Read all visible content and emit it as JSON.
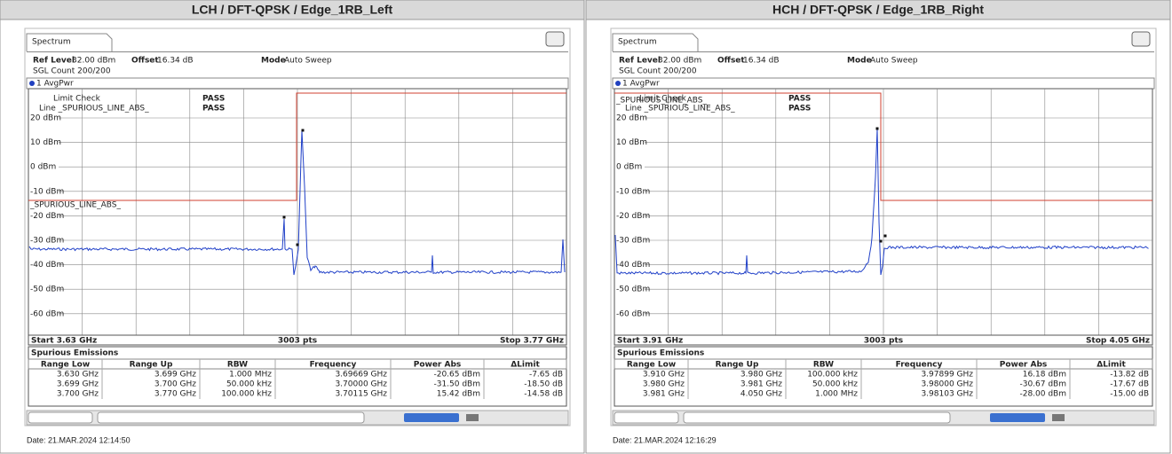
{
  "panels": [
    {
      "title": "LCH / DFT-QPSK / Edge_1RB_Left",
      "tab": "Spectrum",
      "ref_level_label": "Ref Level",
      "ref_level": "32.00 dBm",
      "offset_label": "Offset",
      "offset": "16.34 dB",
      "mode_label": "Mode",
      "mode": "Auto Sweep",
      "sgl_count": "SGL Count 200/200",
      "trace": "1 AvgPwr",
      "limit_check": [
        "Limit Check",
        "PASS"
      ],
      "limit_line": [
        "Line _SPURIOUS_LINE_ABS_",
        "PASS"
      ],
      "limit_line_label": "_SPURIOUS_LINE_ABS_",
      "y_labels": [
        "20 dBm",
        "10 dBm",
        "0 dBm",
        "-10 dBm",
        "-20 dBm",
        "-30 dBm",
        "-40 dBm",
        "-50 dBm",
        "-60 dBm"
      ],
      "start": "Start 3.63 GHz",
      "points": "3003 pts",
      "stop": "Stop 3.77 GHz",
      "table": {
        "title": "Spurious Emissions",
        "header": [
          "Range Low",
          "Range Up",
          "RBW",
          "Frequency",
          "Power Abs",
          "ΔLimit"
        ],
        "rows": [
          [
            "3.630 GHz",
            "3.699 GHz",
            "1.000 MHz",
            "3.69669 GHz",
            "-20.65 dBm",
            "-7.65 dB"
          ],
          [
            "3.699 GHz",
            "3.700 GHz",
            "50.000 kHz",
            "3.70000 GHz",
            "-31.50 dBm",
            "-18.50 dB"
          ],
          [
            "3.700 GHz",
            "3.770 GHz",
            "100.000 kHz",
            "3.70115 GHz",
            "15.42 dBm",
            "-14.58 dB"
          ]
        ]
      },
      "date": "Date: 21.MAR.2024  12:14:50"
    },
    {
      "title": "HCH / DFT-QPSK / Edge_1RB_Right",
      "tab": "Spectrum",
      "ref_level_label": "Ref Level",
      "ref_level": "32.00 dBm",
      "offset_label": "Offset",
      "offset": "16.34 dB",
      "mode_label": "Mode",
      "mode": "Auto Sweep",
      "sgl_count": "SGL Count 200/200",
      "trace": "1 AvgPwr",
      "limit_check": [
        "Limit Check",
        "PASS"
      ],
      "limit_line": [
        "Line _SPURIOUS_LINE_ABS_",
        "PASS"
      ],
      "limit_line_label": "_SPURIOUS_LINE_ABS_",
      "y_labels": [
        "20 dBm",
        "10 dBm",
        "0 dBm",
        "-10 dBm",
        "-20 dBm",
        "-30 dBm",
        "-40 dBm",
        "-50 dBm",
        "-60 dBm"
      ],
      "start": "Start 3.91 GHz",
      "points": "3003 pts",
      "stop": "Stop 4.05 GHz",
      "table": {
        "title": "Spurious Emissions",
        "header": [
          "Range Low",
          "Range Up",
          "RBW",
          "Frequency",
          "Power Abs",
          "ΔLimit"
        ],
        "rows": [
          [
            "3.910 GHz",
            "3.980 GHz",
            "100.000 kHz",
            "3.97899 GHz",
            "16.18 dBm",
            "-13.82 dB"
          ],
          [
            "3.980 GHz",
            "3.981 GHz",
            "50.000 kHz",
            "3.98000 GHz",
            "-30.67 dBm",
            "-17.67 dB"
          ],
          [
            "3.981 GHz",
            "4.050 GHz",
            "1.000 MHz",
            "3.98103 GHz",
            "-28.00 dBm",
            "-15.00 dB"
          ]
        ]
      },
      "date": "Date: 21.MAR.2024  12:16:29"
    }
  ]
}
